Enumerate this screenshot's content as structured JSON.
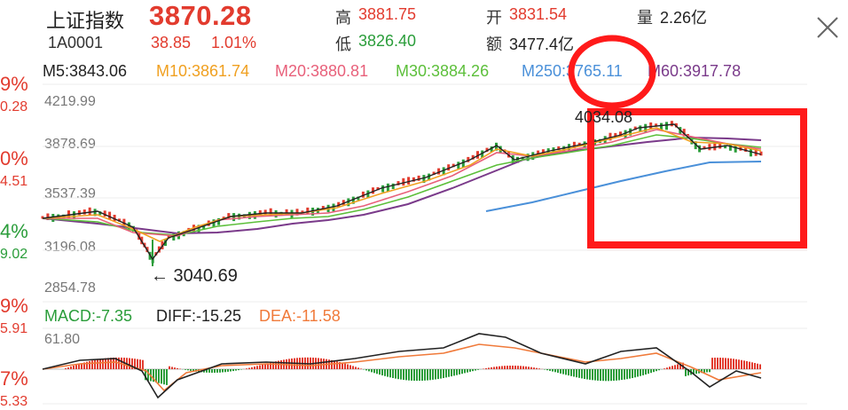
{
  "header": {
    "name": "上证指数",
    "code": "1A0001",
    "price": "3870.28",
    "change": "38.85",
    "change_pct": "1.01%",
    "high_label": "高",
    "high_value": "3881.75",
    "low_label": "低",
    "low_value": "3826.40",
    "open_label": "开",
    "open_value": "3831.54",
    "amount_label": "额",
    "amount_value": "3477.4亿",
    "volume_label": "量",
    "volume_value": "2.26亿"
  },
  "left_axis": [
    {
      "text": "9%",
      "color": "#e23b2e"
    },
    {
      "text": "0.28",
      "color": "#e23b2e"
    },
    {
      "text": "0%",
      "color": "#e23b2e"
    },
    {
      "text": "4.51",
      "color": "#e23b2e"
    },
    {
      "text": "4%",
      "color": "#2a9d3a"
    },
    {
      "text": "9.02",
      "color": "#2a9d3a"
    },
    {
      "text": "9%",
      "color": "#e23b2e"
    },
    {
      "text": "5.91",
      "color": "#e23b2e"
    },
    {
      "text": "7%",
      "color": "#e23b2e"
    },
    {
      "text": "5.33",
      "color": "#e23b2e"
    }
  ],
  "ma": {
    "m5": "M5:3843.06",
    "m10": "M10:3861.74",
    "m20": "M20:3880.81",
    "m30": "M30:3884.26",
    "m250": "M250:3765.11",
    "m60": "M60:3917.78"
  },
  "price_axis": {
    "ticks": [
      "4219.99",
      "3878.69",
      "3537.39",
      "3196.08",
      "2854.78"
    ]
  },
  "annotations": {
    "low_marker": "← 3040.69",
    "high_marker_partial": "4034.08"
  },
  "macd": {
    "macd": "MACD:-7.35",
    "diff": "DIFF:-15.25",
    "dea": "DEA:-11.58",
    "top_tick": "61.80"
  },
  "colors": {
    "up": "#e23b2e",
    "down": "#2a9d3a",
    "m5": "#222222",
    "m10": "#f0a020",
    "m20": "#e8607a",
    "m30": "#5cbf3a",
    "m250": "#4a90d9",
    "m60": "#7a3a8a",
    "highlight": "#ff1a1a"
  }
}
